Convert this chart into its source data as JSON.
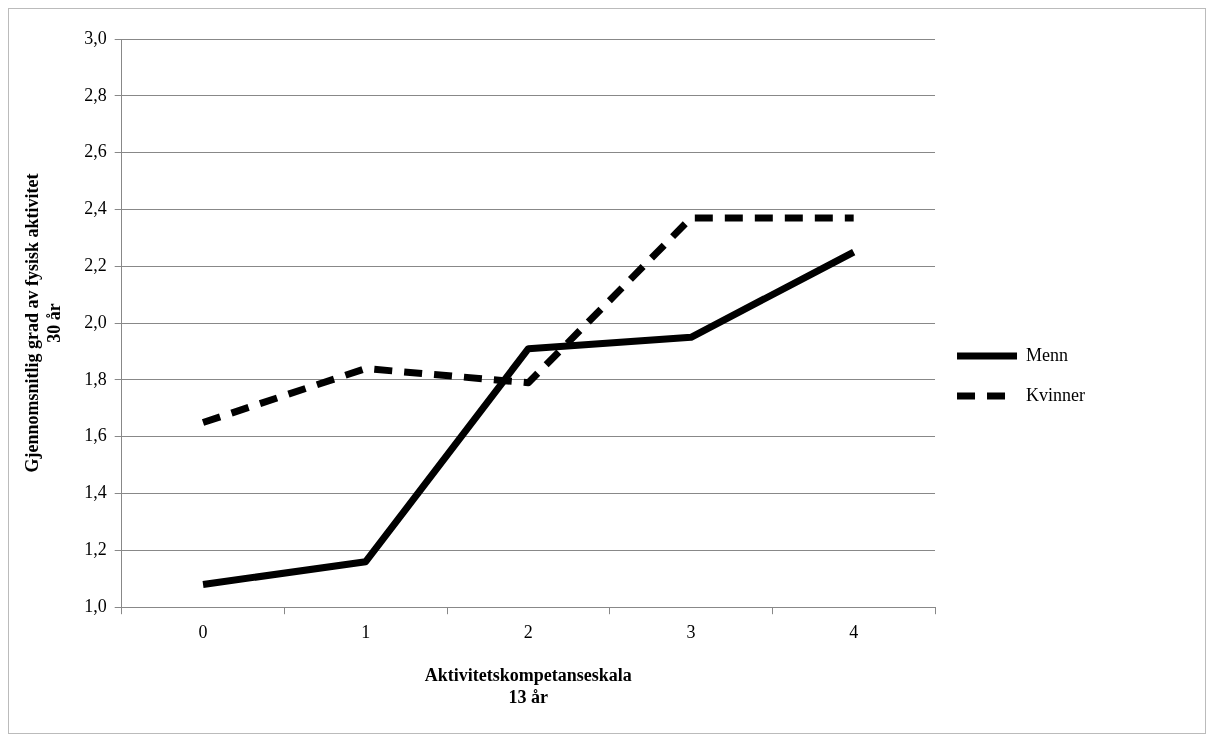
{
  "chart_data": {
    "type": "line",
    "xlabel": "Aktivitetskompetanseskala\n13 år",
    "ylabel": "Gjennomsnitlig grad av fysisk aktivitet\n30 år",
    "categories": [
      "0",
      "1",
      "2",
      "3",
      "4"
    ],
    "series": [
      {
        "name": "Menn",
        "color": "#000000",
        "line_style": "solid",
        "values": [
          1.08,
          1.16,
          1.91,
          1.95,
          2.25
        ]
      },
      {
        "name": "Kvinner",
        "color": "#000000",
        "line_style": "dashed",
        "values": [
          1.65,
          1.84,
          1.79,
          2.37,
          2.37
        ]
      }
    ],
    "ylim": [
      1.0,
      3.0
    ],
    "yticks": [
      {
        "value": 1.0,
        "label": "1,0"
      },
      {
        "value": 1.2,
        "label": "1,2"
      },
      {
        "value": 1.4,
        "label": "1,4"
      },
      {
        "value": 1.6,
        "label": "1,6"
      },
      {
        "value": 1.8,
        "label": "1,8"
      },
      {
        "value": 2.0,
        "label": "2,0"
      },
      {
        "value": 2.2,
        "label": "2,2"
      },
      {
        "value": 2.4,
        "label": "2,4"
      },
      {
        "value": 2.6,
        "label": "2,6"
      },
      {
        "value": 2.8,
        "label": "2,8"
      },
      {
        "value": 3.0,
        "label": "3,0"
      }
    ],
    "grid": "y",
    "legend": "right",
    "marker": "none"
  }
}
